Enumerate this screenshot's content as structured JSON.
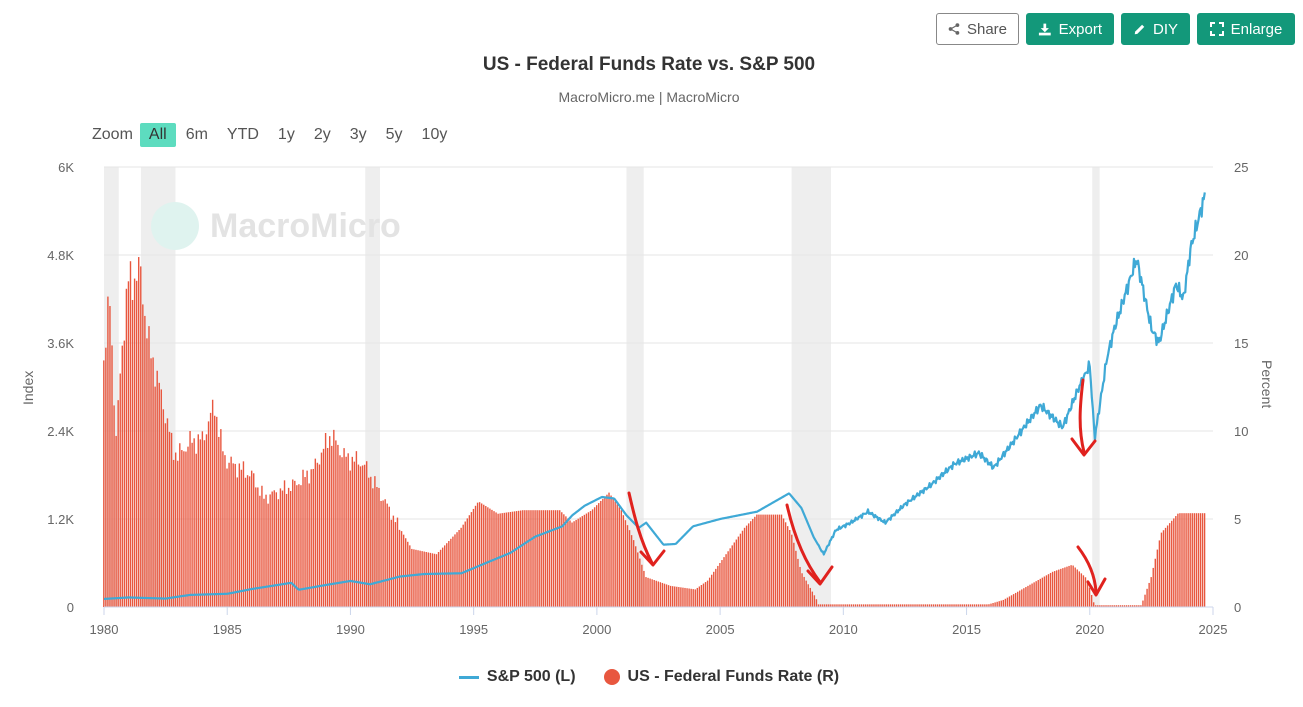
{
  "toolbar": {
    "share_label": "Share",
    "export_label": "Export",
    "diy_label": "DIY",
    "enlarge_label": "Enlarge"
  },
  "title": "US - Federal Funds Rate vs. S&P 500",
  "subtitle": "MacroMicro.me | MacroMicro",
  "watermark": "MacroMicro",
  "zoom": {
    "label": "Zoom",
    "options": [
      "All",
      "6m",
      "YTD",
      "1y",
      "2y",
      "3y",
      "5y",
      "10y"
    ],
    "selected": "All"
  },
  "colors": {
    "sp500": "#3fa9d6",
    "fed_funds": "#e8573f",
    "recession": "#eeeeee",
    "annotation": "#e0221e",
    "accent": "#13987a"
  },
  "chart_data": {
    "type": "line",
    "title": "US - Federal Funds Rate vs. S&P 500",
    "x_ticks": [
      "1980",
      "1985",
      "1990",
      "1995",
      "2000",
      "2005",
      "2010",
      "2015",
      "2020",
      "2025"
    ],
    "xlim": [
      1980,
      2025
    ],
    "left_axis": {
      "label": "Index",
      "ticks": [
        "0",
        "1.2K",
        "2.4K",
        "3.6K",
        "4.8K",
        "6K"
      ],
      "ylim": [
        0,
        6000
      ]
    },
    "right_axis": {
      "label": "Percent",
      "ticks": [
        "0",
        "5",
        "10",
        "15",
        "20",
        "25"
      ],
      "ylim": [
        0,
        25
      ]
    },
    "recessions": [
      [
        1980.0,
        1980.6
      ],
      [
        1981.5,
        1982.9
      ],
      [
        1990.6,
        1991.2
      ],
      [
        2001.2,
        2001.9
      ],
      [
        2007.9,
        2009.5
      ],
      [
        2020.1,
        2020.4
      ]
    ],
    "series": [
      {
        "name": "S&P 500 (L)",
        "axis": "left",
        "style": "line",
        "points": [
          [
            1980.0,
            110
          ],
          [
            1981.0,
            130
          ],
          [
            1982.5,
            115
          ],
          [
            1983.5,
            165
          ],
          [
            1985.0,
            180
          ],
          [
            1986.0,
            245
          ],
          [
            1987.6,
            330
          ],
          [
            1987.9,
            235
          ],
          [
            1989.0,
            300
          ],
          [
            1990.0,
            355
          ],
          [
            1990.8,
            310
          ],
          [
            1992.0,
            415
          ],
          [
            1993.0,
            450
          ],
          [
            1994.5,
            460
          ],
          [
            1995.5,
            600
          ],
          [
            1996.5,
            740
          ],
          [
            1997.5,
            960
          ],
          [
            1998.6,
            1100
          ],
          [
            1999.0,
            1250
          ],
          [
            1999.5,
            1380
          ],
          [
            2000.2,
            1500
          ],
          [
            2000.7,
            1480
          ],
          [
            2001.2,
            1250
          ],
          [
            2001.7,
            1080
          ],
          [
            2002.0,
            1150
          ],
          [
            2002.7,
            850
          ],
          [
            2003.2,
            860
          ],
          [
            2003.9,
            1100
          ],
          [
            2005.0,
            1200
          ],
          [
            2006.5,
            1300
          ],
          [
            2007.8,
            1550
          ],
          [
            2008.3,
            1350
          ],
          [
            2008.8,
            950
          ],
          [
            2009.2,
            720
          ],
          [
            2009.7,
            1050
          ],
          [
            2010.3,
            1150
          ],
          [
            2011.0,
            1300
          ],
          [
            2011.7,
            1150
          ],
          [
            2012.5,
            1400
          ],
          [
            2013.5,
            1650
          ],
          [
            2014.5,
            1950
          ],
          [
            2015.5,
            2100
          ],
          [
            2016.1,
            1900
          ],
          [
            2017.0,
            2300
          ],
          [
            2018.0,
            2750
          ],
          [
            2018.9,
            2450
          ],
          [
            2019.5,
            2950
          ],
          [
            2020.0,
            3300
          ],
          [
            2020.2,
            2300
          ],
          [
            2020.7,
            3400
          ],
          [
            2021.0,
            3800
          ],
          [
            2021.9,
            4750
          ],
          [
            2022.5,
            3800
          ],
          [
            2022.8,
            3600
          ],
          [
            2023.5,
            4400
          ],
          [
            2023.8,
            4200
          ],
          [
            2024.1,
            4900
          ],
          [
            2024.7,
            5650
          ]
        ]
      },
      {
        "name": "US - Federal Funds Rate (R)",
        "axis": "right",
        "style": "bar",
        "points": [
          [
            1980.0,
            14
          ],
          [
            1980.25,
            17.5
          ],
          [
            1980.5,
            9.5
          ],
          [
            1980.75,
            15
          ],
          [
            1981.0,
            18.5
          ],
          [
            1981.5,
            19
          ],
          [
            1981.8,
            15
          ],
          [
            1982.0,
            14
          ],
          [
            1982.5,
            11
          ],
          [
            1982.8,
            9
          ],
          [
            1983.0,
            8.6
          ],
          [
            1983.5,
            9.4
          ],
          [
            1984.0,
            9.5
          ],
          [
            1984.5,
            11.5
          ],
          [
            1984.8,
            9
          ],
          [
            1985.0,
            8.3
          ],
          [
            1986.0,
            7.5
          ],
          [
            1986.5,
            6.2
          ],
          [
            1987.0,
            6.5
          ],
          [
            1987.8,
            7
          ],
          [
            1988.5,
            7.8
          ],
          [
            1989.2,
            9.8
          ],
          [
            1989.8,
            8.5
          ],
          [
            1990.5,
            8.2
          ],
          [
            1991.0,
            7
          ],
          [
            1991.8,
            5
          ],
          [
            1992.5,
            3.3
          ],
          [
            1993.5,
            3
          ],
          [
            1994.5,
            4.5
          ],
          [
            1995.2,
            6
          ],
          [
            1996.0,
            5.3
          ],
          [
            1997.0,
            5.5
          ],
          [
            1998.5,
            5.5
          ],
          [
            1999.0,
            4.8
          ],
          [
            1999.8,
            5.5
          ],
          [
            2000.5,
            6.5
          ],
          [
            2001.0,
            5.5
          ],
          [
            2001.5,
            3.8
          ],
          [
            2002.0,
            1.7
          ],
          [
            2003.0,
            1.2
          ],
          [
            2004.0,
            1
          ],
          [
            2004.5,
            1.5
          ],
          [
            2005.0,
            2.5
          ],
          [
            2006.0,
            4.5
          ],
          [
            2006.5,
            5.25
          ],
          [
            2007.5,
            5.25
          ],
          [
            2007.9,
            4.2
          ],
          [
            2008.3,
            2
          ],
          [
            2008.9,
            0.5
          ],
          [
            2009.0,
            0.15
          ],
          [
            2015.9,
            0.15
          ],
          [
            2016.5,
            0.4
          ],
          [
            2017.5,
            1.2
          ],
          [
            2018.5,
            2
          ],
          [
            2019.3,
            2.4
          ],
          [
            2019.9,
            1.6
          ],
          [
            2020.2,
            0.1
          ],
          [
            2022.1,
            0.1
          ],
          [
            2022.5,
            1.7
          ],
          [
            2022.9,
            4.2
          ],
          [
            2023.6,
            5.33
          ],
          [
            2024.7,
            5.33
          ]
        ]
      }
    ],
    "annotations": "red hand-drawn downward arrows marking S&P 500 declines after rate cuts (2001, 2008, 2020) and near 2019 peak",
    "legend_position": "bottom-center"
  }
}
